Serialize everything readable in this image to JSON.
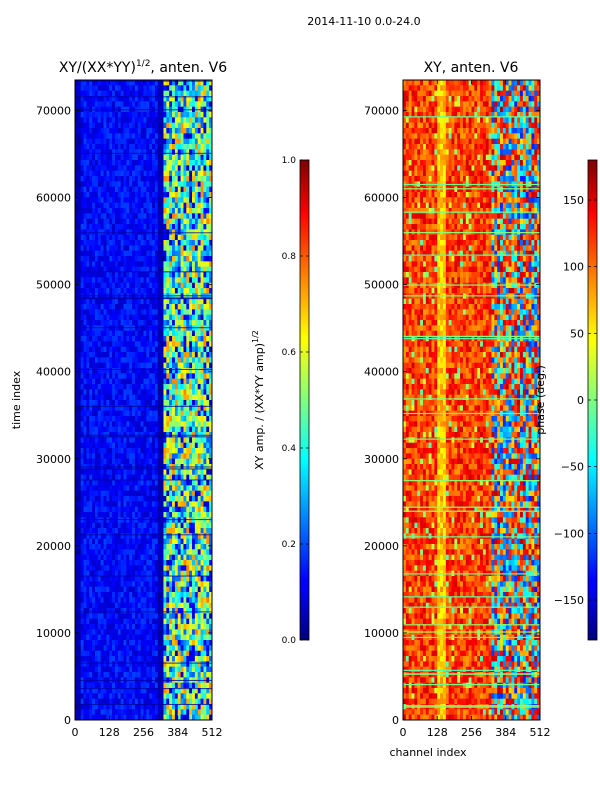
{
  "figure": {
    "suptitle": "2014-11-10 0.0-24.0"
  },
  "chart_data": [
    {
      "type": "heatmap",
      "title_main": "XY/(XX*YY)",
      "title_exp": "1/2",
      "title_tail": ", anten. V6",
      "xlabel": "",
      "ylabel": "time index",
      "xticks": [
        0,
        128,
        256,
        384,
        512
      ],
      "yticks": [
        0,
        10000,
        20000,
        30000,
        40000,
        50000,
        60000,
        70000
      ],
      "xlim": [
        0,
        512
      ],
      "ylim": [
        0,
        73500
      ],
      "colormap": "jet",
      "colorbar": {
        "label_main": "XY amp. / (XX*YY amp)",
        "label_exp": "1/2",
        "range": [
          0.0,
          1.0
        ],
        "ticks": [
          "0.0",
          "0.2",
          "0.4",
          "0.6",
          "0.8",
          "1.0"
        ]
      }
    },
    {
      "type": "heatmap",
      "title": "XY, anten. V6",
      "xlabel": "channel index",
      "ylabel": "",
      "xticks": [
        0,
        128,
        256,
        384,
        512
      ],
      "yticks": [
        0,
        10000,
        20000,
        30000,
        40000,
        50000,
        60000,
        70000
      ],
      "xlim": [
        0,
        512
      ],
      "ylim": [
        0,
        73500
      ],
      "colormap": "jet",
      "colorbar": {
        "label": "phase (deg.)",
        "range": [
          -180,
          180
        ],
        "ticks": [
          "−150",
          "−100",
          "−50",
          "0",
          "50",
          "100",
          "150"
        ]
      }
    }
  ],
  "colors": {
    "background": "#ffffff",
    "axes": "#000000"
  }
}
